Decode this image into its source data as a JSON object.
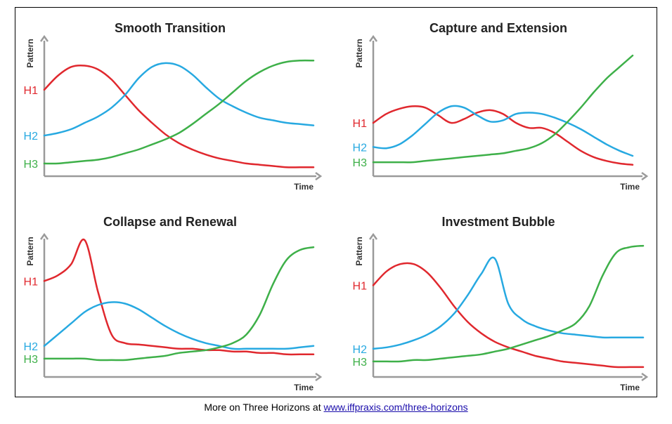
{
  "footer": {
    "prefix": "More on Three Horizons at ",
    "link_text": "www.iffpraxis.com/three-horizons"
  },
  "colors": {
    "h1": "#e0282e",
    "h2": "#27a9e1",
    "h3": "#3eb049"
  },
  "chart_data": [
    {
      "type": "line",
      "title": "Smooth Transition",
      "xlabel": "Time",
      "ylabel": "Pattern",
      "x": [
        0,
        0.05,
        0.1,
        0.15,
        0.2,
        0.25,
        0.3,
        0.35,
        0.4,
        0.45,
        0.5,
        0.55,
        0.6,
        0.65,
        0.7,
        0.75,
        0.8,
        0.85,
        0.9,
        0.95,
        1
      ],
      "series": [
        {
          "name": "H1",
          "values": [
            0.68,
            0.79,
            0.86,
            0.87,
            0.84,
            0.76,
            0.64,
            0.52,
            0.42,
            0.33,
            0.26,
            0.21,
            0.17,
            0.14,
            0.12,
            0.1,
            0.09,
            0.08,
            0.07,
            0.07,
            0.07
          ]
        },
        {
          "name": "H2",
          "values": [
            0.32,
            0.34,
            0.37,
            0.42,
            0.47,
            0.54,
            0.64,
            0.77,
            0.86,
            0.89,
            0.87,
            0.8,
            0.7,
            0.61,
            0.55,
            0.5,
            0.46,
            0.44,
            0.42,
            0.41,
            0.4
          ]
        },
        {
          "name": "H3",
          "values": [
            0.1,
            0.1,
            0.11,
            0.12,
            0.13,
            0.15,
            0.18,
            0.21,
            0.25,
            0.29,
            0.34,
            0.41,
            0.49,
            0.57,
            0.66,
            0.75,
            0.82,
            0.87,
            0.9,
            0.91,
            0.91
          ]
        }
      ]
    },
    {
      "type": "line",
      "title": "Capture and Extension",
      "xlabel": "Time",
      "ylabel": "Pattern",
      "x": [
        0,
        0.05,
        0.1,
        0.15,
        0.2,
        0.25,
        0.3,
        0.35,
        0.4,
        0.45,
        0.5,
        0.55,
        0.6,
        0.65,
        0.7,
        0.75,
        0.8,
        0.85,
        0.9,
        0.95,
        1
      ],
      "series": [
        {
          "name": "H1",
          "values": [
            0.42,
            0.49,
            0.53,
            0.55,
            0.54,
            0.48,
            0.42,
            0.45,
            0.5,
            0.52,
            0.49,
            0.42,
            0.38,
            0.38,
            0.34,
            0.27,
            0.2,
            0.15,
            0.12,
            0.1,
            0.09
          ]
        },
        {
          "name": "H2",
          "values": [
            0.23,
            0.22,
            0.25,
            0.32,
            0.41,
            0.5,
            0.55,
            0.54,
            0.48,
            0.43,
            0.44,
            0.49,
            0.5,
            0.49,
            0.46,
            0.42,
            0.37,
            0.31,
            0.25,
            0.2,
            0.16
          ]
        },
        {
          "name": "H3",
          "values": [
            0.11,
            0.11,
            0.11,
            0.11,
            0.12,
            0.13,
            0.14,
            0.15,
            0.16,
            0.17,
            0.18,
            0.2,
            0.22,
            0.26,
            0.33,
            0.43,
            0.54,
            0.66,
            0.77,
            0.86,
            0.95
          ]
        }
      ]
    },
    {
      "type": "line",
      "title": "Collapse and Renewal",
      "xlabel": "Time",
      "ylabel": "Pattern",
      "x": [
        0,
        0.05,
        0.1,
        0.15,
        0.2,
        0.25,
        0.3,
        0.35,
        0.4,
        0.45,
        0.5,
        0.55,
        0.6,
        0.65,
        0.7,
        0.75,
        0.8,
        0.85,
        0.9,
        0.95,
        1
      ],
      "series": [
        {
          "name": "H1",
          "values": [
            0.68,
            0.72,
            0.8,
            0.97,
            0.6,
            0.3,
            0.24,
            0.23,
            0.22,
            0.21,
            0.2,
            0.2,
            0.19,
            0.19,
            0.18,
            0.18,
            0.17,
            0.17,
            0.16,
            0.16,
            0.16
          ]
        },
        {
          "name": "H2",
          "values": [
            0.22,
            0.3,
            0.38,
            0.46,
            0.51,
            0.53,
            0.52,
            0.48,
            0.42,
            0.36,
            0.31,
            0.27,
            0.24,
            0.22,
            0.2,
            0.2,
            0.2,
            0.2,
            0.2,
            0.21,
            0.22
          ]
        },
        {
          "name": "H3",
          "values": [
            0.13,
            0.13,
            0.13,
            0.13,
            0.12,
            0.12,
            0.12,
            0.13,
            0.14,
            0.15,
            0.17,
            0.18,
            0.19,
            0.21,
            0.24,
            0.3,
            0.44,
            0.66,
            0.83,
            0.9,
            0.92
          ]
        }
      ]
    },
    {
      "type": "line",
      "title": "Investment Bubble",
      "xlabel": "Time",
      "ylabel": "Pattern",
      "x": [
        0,
        0.05,
        0.1,
        0.15,
        0.2,
        0.25,
        0.3,
        0.35,
        0.4,
        0.45,
        0.5,
        0.55,
        0.6,
        0.65,
        0.7,
        0.75,
        0.8,
        0.85,
        0.9,
        0.95,
        1
      ],
      "series": [
        {
          "name": "H1",
          "values": [
            0.65,
            0.75,
            0.8,
            0.8,
            0.74,
            0.63,
            0.5,
            0.39,
            0.31,
            0.25,
            0.21,
            0.18,
            0.15,
            0.13,
            0.11,
            0.1,
            0.09,
            0.08,
            0.07,
            0.07,
            0.07
          ]
        },
        {
          "name": "H2",
          "values": [
            0.2,
            0.21,
            0.23,
            0.26,
            0.3,
            0.36,
            0.45,
            0.58,
            0.73,
            0.84,
            0.52,
            0.41,
            0.36,
            0.33,
            0.31,
            0.3,
            0.29,
            0.28,
            0.28,
            0.28,
            0.28
          ]
        },
        {
          "name": "H3",
          "values": [
            0.11,
            0.11,
            0.11,
            0.12,
            0.12,
            0.13,
            0.14,
            0.15,
            0.16,
            0.18,
            0.2,
            0.23,
            0.26,
            0.29,
            0.33,
            0.38,
            0.5,
            0.72,
            0.88,
            0.92,
            0.93
          ]
        }
      ]
    }
  ]
}
